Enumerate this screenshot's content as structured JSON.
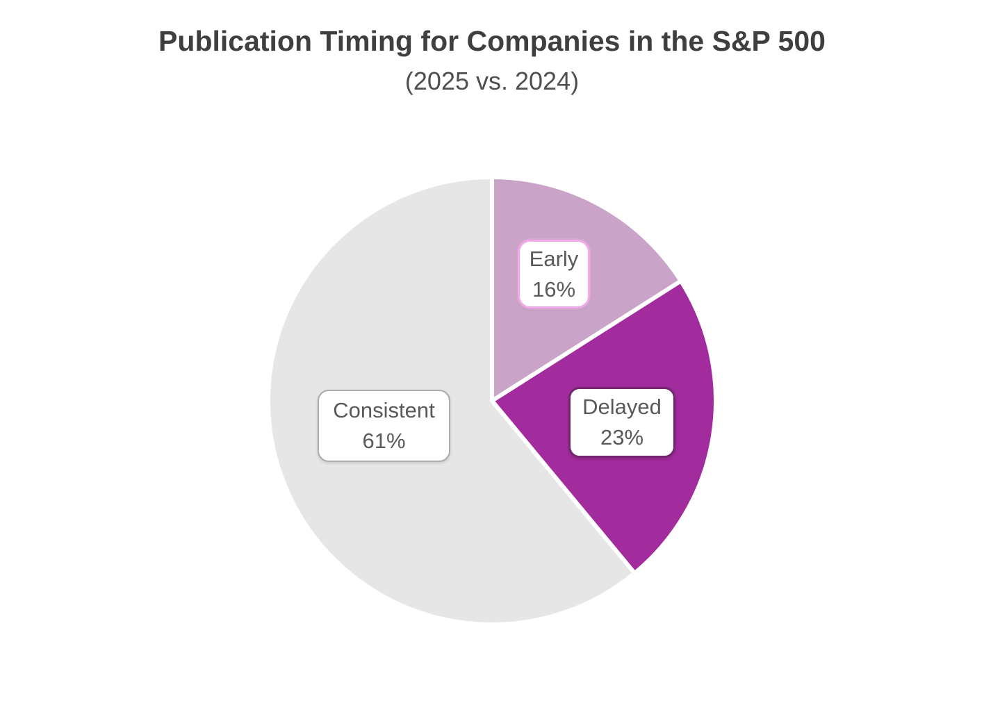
{
  "title": "Publication Timing for Companies in the S&P 500",
  "subtitle": "(2025 vs. 2024)",
  "chart_data": {
    "type": "pie",
    "title": "Publication Timing for Companies in the S&P 500",
    "subtitle": "(2025 vs. 2024)",
    "categories": [
      "Early",
      "Delayed",
      "Consistent"
    ],
    "values": [
      16,
      23,
      61
    ],
    "unit": "%",
    "start_angle_deg": 0,
    "direction": "clockwise",
    "legend": "none",
    "slice_colors": [
      "#C9A4C8",
      "#A22B9D",
      "#E7E6E7"
    ],
    "slice_separator_color": "#FFFFFF",
    "data_labels": [
      {
        "category": "Early",
        "value": "16%"
      },
      {
        "category": "Delayed",
        "value": "23%"
      },
      {
        "category": "Consistent",
        "value": "61%"
      }
    ]
  },
  "labels": {
    "early": {
      "name": "Early",
      "pct": "16%"
    },
    "delayed": {
      "name": "Delayed",
      "pct": "23%"
    },
    "consistent": {
      "name": "Consistent",
      "pct": "61%"
    }
  },
  "colors": {
    "background": "#FFFFFF",
    "title_text": "#3F3F3F",
    "subtitle_text": "#4F4F4F",
    "label_text": "#595959",
    "early_label_border": "#F0ABE8",
    "delayed_label_border": "#73266F",
    "consistent_label_border": "#ABABAB"
  }
}
